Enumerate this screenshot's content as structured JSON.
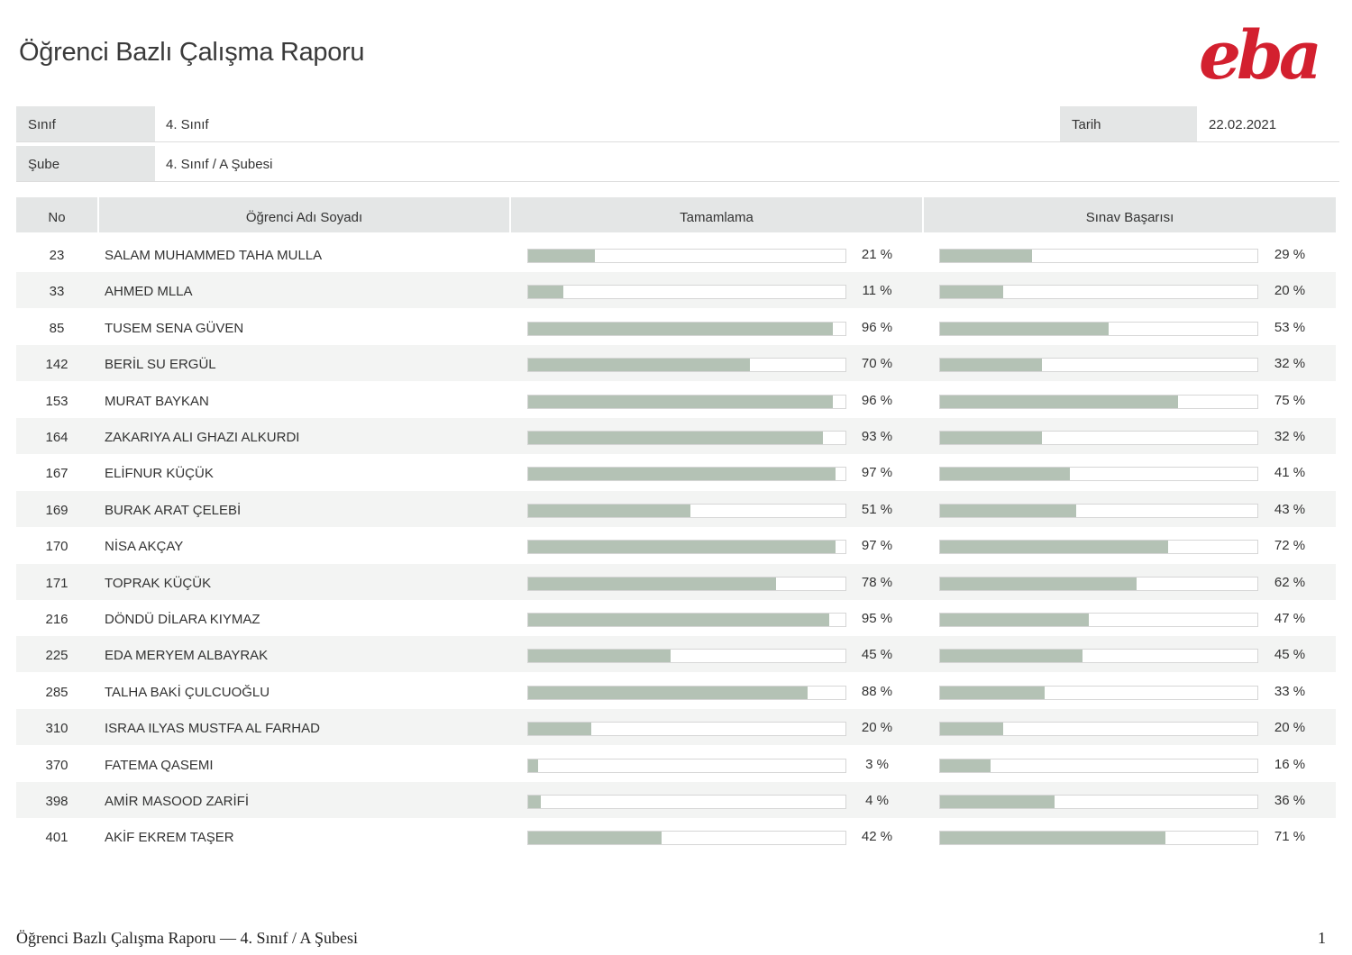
{
  "header": {
    "title": "Öğrenci Bazlı Çalışma Raporu",
    "logo_text": "eba",
    "brand_color": "#d3202f"
  },
  "info": {
    "class_label": "Sınıf",
    "class_value": "4. Sınıf",
    "date_label": "Tarih",
    "date_value": "22.02.2021",
    "branch_label": "Şube",
    "branch_value": "4. Sınıf / A Şubesi"
  },
  "table": {
    "columns": [
      "No",
      "Öğrenci Adı Soyadı",
      "Tamamlama",
      "Sınav Başarısı"
    ],
    "bar_color": "#b4c2b5",
    "rows": [
      {
        "no": "23",
        "name": "SALAM MUHAMMED TAHA MULLA",
        "completion": 21,
        "completion_label": "21 %",
        "exam": 29,
        "exam_label": "29 %"
      },
      {
        "no": "33",
        "name": "AHMED MLLA",
        "completion": 11,
        "completion_label": "11 %",
        "exam": 20,
        "exam_label": "20 %"
      },
      {
        "no": "85",
        "name": "TUSEM SENA GÜVEN",
        "completion": 96,
        "completion_label": "96 %",
        "exam": 53,
        "exam_label": "53 %"
      },
      {
        "no": "142",
        "name": "BERİL SU ERGÜL",
        "completion": 70,
        "completion_label": "70 %",
        "exam": 32,
        "exam_label": "32 %"
      },
      {
        "no": "153",
        "name": "MURAT BAYKAN",
        "completion": 96,
        "completion_label": "96 %",
        "exam": 75,
        "exam_label": "75 %"
      },
      {
        "no": "164",
        "name": "ZAKARIYA ALI GHAZI ALKURDI",
        "completion": 93,
        "completion_label": "93 %",
        "exam": 32,
        "exam_label": "32 %"
      },
      {
        "no": "167",
        "name": "ELİFNUR KÜÇÜK",
        "completion": 97,
        "completion_label": "97 %",
        "exam": 41,
        "exam_label": "41 %"
      },
      {
        "no": "169",
        "name": "BURAK ARAT ÇELEBİ",
        "completion": 51,
        "completion_label": "51 %",
        "exam": 43,
        "exam_label": "43 %"
      },
      {
        "no": "170",
        "name": "NİSA AKÇAY",
        "completion": 97,
        "completion_label": "97 %",
        "exam": 72,
        "exam_label": "72 %"
      },
      {
        "no": "171",
        "name": "TOPRAK KÜÇÜK",
        "completion": 78,
        "completion_label": "78 %",
        "exam": 62,
        "exam_label": "62 %"
      },
      {
        "no": "216",
        "name": "DÖNDÜ DİLARA KIYMAZ",
        "completion": 95,
        "completion_label": "95 %",
        "exam": 47,
        "exam_label": "47 %"
      },
      {
        "no": "225",
        "name": "EDA MERYEM ALBAYRAK",
        "completion": 45,
        "completion_label": "45 %",
        "exam": 45,
        "exam_label": "45 %"
      },
      {
        "no": "285",
        "name": "TALHA BAKİ ÇULCUOĞLU",
        "completion": 88,
        "completion_label": "88 %",
        "exam": 33,
        "exam_label": "33 %"
      },
      {
        "no": "310",
        "name": "ISRAA ILYAS MUSTFA AL FARHAD",
        "completion": 20,
        "completion_label": "20 %",
        "exam": 20,
        "exam_label": "20 %"
      },
      {
        "no": "370",
        "name": "FATEMA QASEMI",
        "completion": 3,
        "completion_label": "3 %",
        "exam": 16,
        "exam_label": "16 %"
      },
      {
        "no": "398",
        "name": "AMİR MASOOD ZARİFİ",
        "completion": 4,
        "completion_label": "4 %",
        "exam": 36,
        "exam_label": "36 %"
      },
      {
        "no": "401",
        "name": "AKİF EKREM TAŞER",
        "completion": 42,
        "completion_label": "42 %",
        "exam": 71,
        "exam_label": "71 %"
      }
    ]
  },
  "footer": {
    "text": "Öğrenci Bazlı Çalışma Raporu — 4. Sınıf / A Şubesi",
    "page_number": "1"
  }
}
